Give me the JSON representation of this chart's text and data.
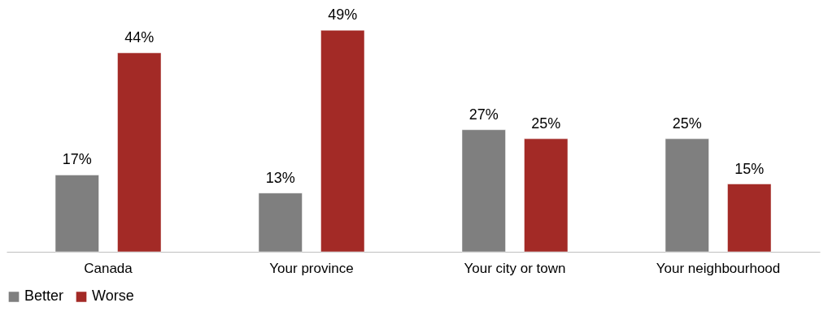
{
  "chart_data": {
    "type": "bar",
    "categories": [
      "Canada",
      "Your province",
      "Your city or town",
      "Your neighbourhood"
    ],
    "series": [
      {
        "name": "Better",
        "color": "#7f7f7f",
        "values": [
          17,
          13,
          27,
          25
        ],
        "value_labels": [
          "17%",
          "13%",
          "27%",
          "25%"
        ]
      },
      {
        "name": "Worse",
        "color": "#a32a26",
        "values": [
          44,
          49,
          25,
          15
        ],
        "value_labels": [
          "44%",
          "49%",
          "25%",
          "15%"
        ]
      }
    ],
    "legend": "bottom",
    "grid": false
  }
}
